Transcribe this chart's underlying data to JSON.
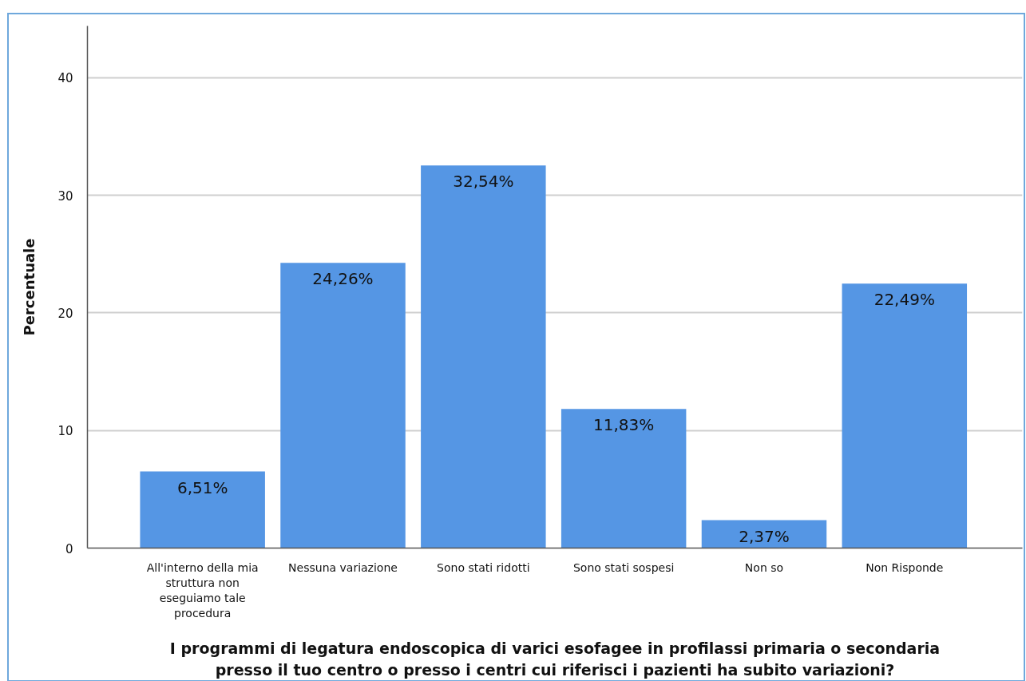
{
  "chart_data": {
    "type": "bar",
    "categories": [
      "All'interno della mia struttura non eseguiamo tale procedura",
      "Nessuna variazione",
      "Sono stati ridotti",
      "Sono stati sospesi",
      "Non so",
      "Non Risponde"
    ],
    "values": [
      6.51,
      24.26,
      32.54,
      11.83,
      2.37,
      22.49
    ],
    "value_labels": [
      "6,51%",
      "24,26%",
      "32,54%",
      "11,83%",
      "2,37%",
      "22,49%"
    ],
    "color": "#5596e4",
    "xlabel": "I programmi di legatura endoscopica di varici esofagee in profilassi primaria o secondaria presso il tuo centro o presso i centri cui riferisci i pazienti ha subito variazioni?",
    "ylabel": "Percentuale",
    "ylim": [
      0,
      44.4
    ],
    "yticks": [
      0,
      10,
      20,
      30,
      40
    ],
    "grid": "y"
  }
}
